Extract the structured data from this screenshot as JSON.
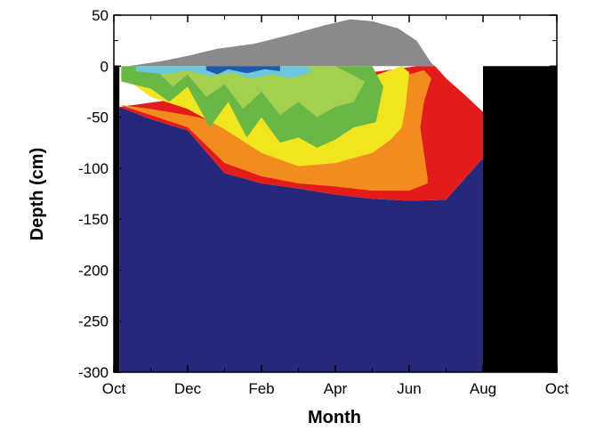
{
  "chart_data": {
    "type": "area",
    "xlabel": "Month",
    "ylabel": "Depth (cm)",
    "x_ticks": [
      "Oct",
      "Dec",
      "Feb",
      "Apr",
      "Jun",
      "Aug",
      "Oct"
    ],
    "x_tick_positions": [
      0,
      2,
      4,
      6,
      8,
      10,
      12
    ],
    "xlim": [
      0,
      12
    ],
    "ylim": [
      -300,
      50
    ],
    "y_ticks": [
      50,
      0,
      -50,
      -100,
      -150,
      -200,
      -250,
      -300
    ],
    "grid": false,
    "legend": "none",
    "no_data_periods": [
      [
        0,
        0.15
      ],
      [
        10.0,
        12
      ]
    ],
    "bands": [
      {
        "color": "#8a8a8a",
        "upper": [
          [
            0.4,
            0
          ],
          [
            1.3,
            5
          ],
          [
            2,
            10
          ],
          [
            2.8,
            17
          ],
          [
            3.8,
            22
          ],
          [
            4.8,
            31
          ],
          [
            5.7,
            40
          ],
          [
            6.4,
            46
          ],
          [
            7,
            44
          ],
          [
            7.7,
            37
          ],
          [
            8.2,
            25
          ],
          [
            8.6,
            3
          ],
          [
            8.7,
            0
          ]
        ],
        "lower": [
          [
            0.4,
            0
          ],
          [
            8.7,
            0
          ]
        ]
      },
      {
        "color": "#e31b1b",
        "upper": [
          [
            0.15,
            -40
          ],
          [
            8.2,
            0
          ],
          [
            8.7,
            0
          ],
          [
            9,
            -12
          ],
          [
            9.5,
            -28
          ],
          [
            10,
            -45
          ],
          [
            10,
            -90
          ]
        ],
        "lower": [
          [
            0.15,
            -40
          ],
          [
            1,
            -52
          ],
          [
            2,
            -63
          ],
          [
            3,
            -105
          ],
          [
            4,
            -115
          ],
          [
            5,
            -120
          ],
          [
            6,
            -126
          ],
          [
            7,
            -130
          ],
          [
            8,
            -132
          ],
          [
            9,
            -131
          ],
          [
            10,
            -90
          ]
        ]
      },
      {
        "color": "#f28c1e",
        "upper": [
          [
            0.15,
            -38
          ],
          [
            1,
            -42
          ],
          [
            2,
            -48
          ],
          [
            3,
            -56
          ],
          [
            4,
            -60
          ],
          [
            5,
            -58
          ],
          [
            6,
            -45
          ],
          [
            7,
            -25
          ],
          [
            8,
            -8
          ],
          [
            8.4,
            -4
          ],
          [
            8.6,
            -12
          ],
          [
            8.4,
            -35
          ],
          [
            8.3,
            -60
          ],
          [
            8.4,
            -85
          ],
          [
            8.5,
            -110
          ]
        ],
        "lower": [
          [
            0.15,
            -38
          ],
          [
            1,
            -48
          ],
          [
            2,
            -60
          ],
          [
            3,
            -95
          ],
          [
            4,
            -108
          ],
          [
            5,
            -115
          ],
          [
            6,
            -118
          ],
          [
            7,
            -122
          ],
          [
            8,
            -122
          ],
          [
            8.5,
            -115
          ]
        ]
      },
      {
        "color": "#f0e51e",
        "upper": [
          [
            0.15,
            -8
          ],
          [
            1,
            -5
          ],
          [
            2,
            -12
          ],
          [
            3,
            -20
          ],
          [
            4,
            -28
          ],
          [
            5,
            -30
          ],
          [
            6,
            -20
          ],
          [
            7,
            -10
          ],
          [
            7.8,
            0
          ],
          [
            8,
            -6
          ],
          [
            7.9,
            -40
          ],
          [
            7.8,
            -60
          ]
        ],
        "lower": [
          [
            0.15,
            -8
          ],
          [
            1,
            -30
          ],
          [
            2,
            -42
          ],
          [
            3,
            -62
          ],
          [
            4,
            -85
          ],
          [
            5,
            -98
          ],
          [
            6,
            -95
          ],
          [
            7,
            -85
          ],
          [
            7.5,
            -72
          ],
          [
            7.8,
            -60
          ]
        ]
      },
      {
        "color": "#69b845",
        "upper": [
          [
            0.2,
            0
          ],
          [
            1,
            0
          ],
          [
            2,
            0
          ],
          [
            3,
            0
          ],
          [
            4,
            0
          ],
          [
            5,
            0
          ],
          [
            6,
            0
          ],
          [
            7,
            0
          ],
          [
            7.3,
            -20
          ],
          [
            7.1,
            -55
          ]
        ],
        "lower": [
          [
            0.2,
            -15
          ],
          [
            1,
            -22
          ],
          [
            1.5,
            -35
          ],
          [
            2,
            -20
          ],
          [
            2.6,
            -60
          ],
          [
            3.1,
            -35
          ],
          [
            3.6,
            -70
          ],
          [
            4,
            -50
          ],
          [
            4.5,
            -75
          ],
          [
            5,
            -70
          ],
          [
            5.5,
            -80
          ],
          [
            6,
            -72
          ],
          [
            6.5,
            -60
          ],
          [
            7.1,
            -55
          ]
        ]
      },
      {
        "color": "#a5cf4e",
        "upper": [
          [
            1.2,
            0
          ],
          [
            2,
            0
          ],
          [
            3,
            0
          ],
          [
            4,
            0
          ],
          [
            5,
            0
          ],
          [
            6,
            0
          ],
          [
            6.8,
            -15
          ],
          [
            6.5,
            -35
          ]
        ],
        "lower": [
          [
            1.2,
            -6
          ],
          [
            1.6,
            -20
          ],
          [
            2,
            -8
          ],
          [
            2.5,
            -30
          ],
          [
            3,
            -18
          ],
          [
            3.5,
            -42
          ],
          [
            4,
            -25
          ],
          [
            4.5,
            -48
          ],
          [
            5,
            -35
          ],
          [
            5.5,
            -50
          ],
          [
            6,
            -40
          ],
          [
            6.5,
            -35
          ]
        ]
      },
      {
        "color": "#6cc8dc",
        "upper": [
          [
            0.6,
            0
          ],
          [
            5.2,
            0
          ],
          [
            5.4,
            -5
          ]
        ],
        "lower": [
          [
            0.6,
            -5
          ],
          [
            1.4,
            -8
          ],
          [
            2,
            -4
          ],
          [
            2.6,
            -10
          ],
          [
            3.2,
            -6
          ],
          [
            3.7,
            -12
          ],
          [
            4.3,
            -8
          ],
          [
            4.8,
            -12
          ],
          [
            5.4,
            -5
          ]
        ]
      },
      {
        "color": "#1e5aa8",
        "upper": [
          [
            2.5,
            0
          ],
          [
            4.5,
            0
          ]
        ],
        "lower": [
          [
            2.5,
            -4
          ],
          [
            2.8,
            -8
          ],
          [
            3.1,
            -3
          ],
          [
            3.6,
            -7
          ],
          [
            4.1,
            -3
          ],
          [
            4.5,
            -5
          ]
        ]
      },
      {
        "color": "#26297a",
        "upper": [
          [
            0.15,
            -40
          ],
          [
            1,
            -52
          ],
          [
            2,
            -63
          ],
          [
            3,
            -105
          ],
          [
            4,
            -115
          ],
          [
            5,
            -120
          ],
          [
            6,
            -126
          ],
          [
            7,
            -130
          ],
          [
            8,
            -132
          ],
          [
            9,
            -131
          ],
          [
            10,
            -90
          ]
        ],
        "lower": [
          [
            0.15,
            -300
          ],
          [
            10,
            -300
          ]
        ]
      }
    ]
  }
}
